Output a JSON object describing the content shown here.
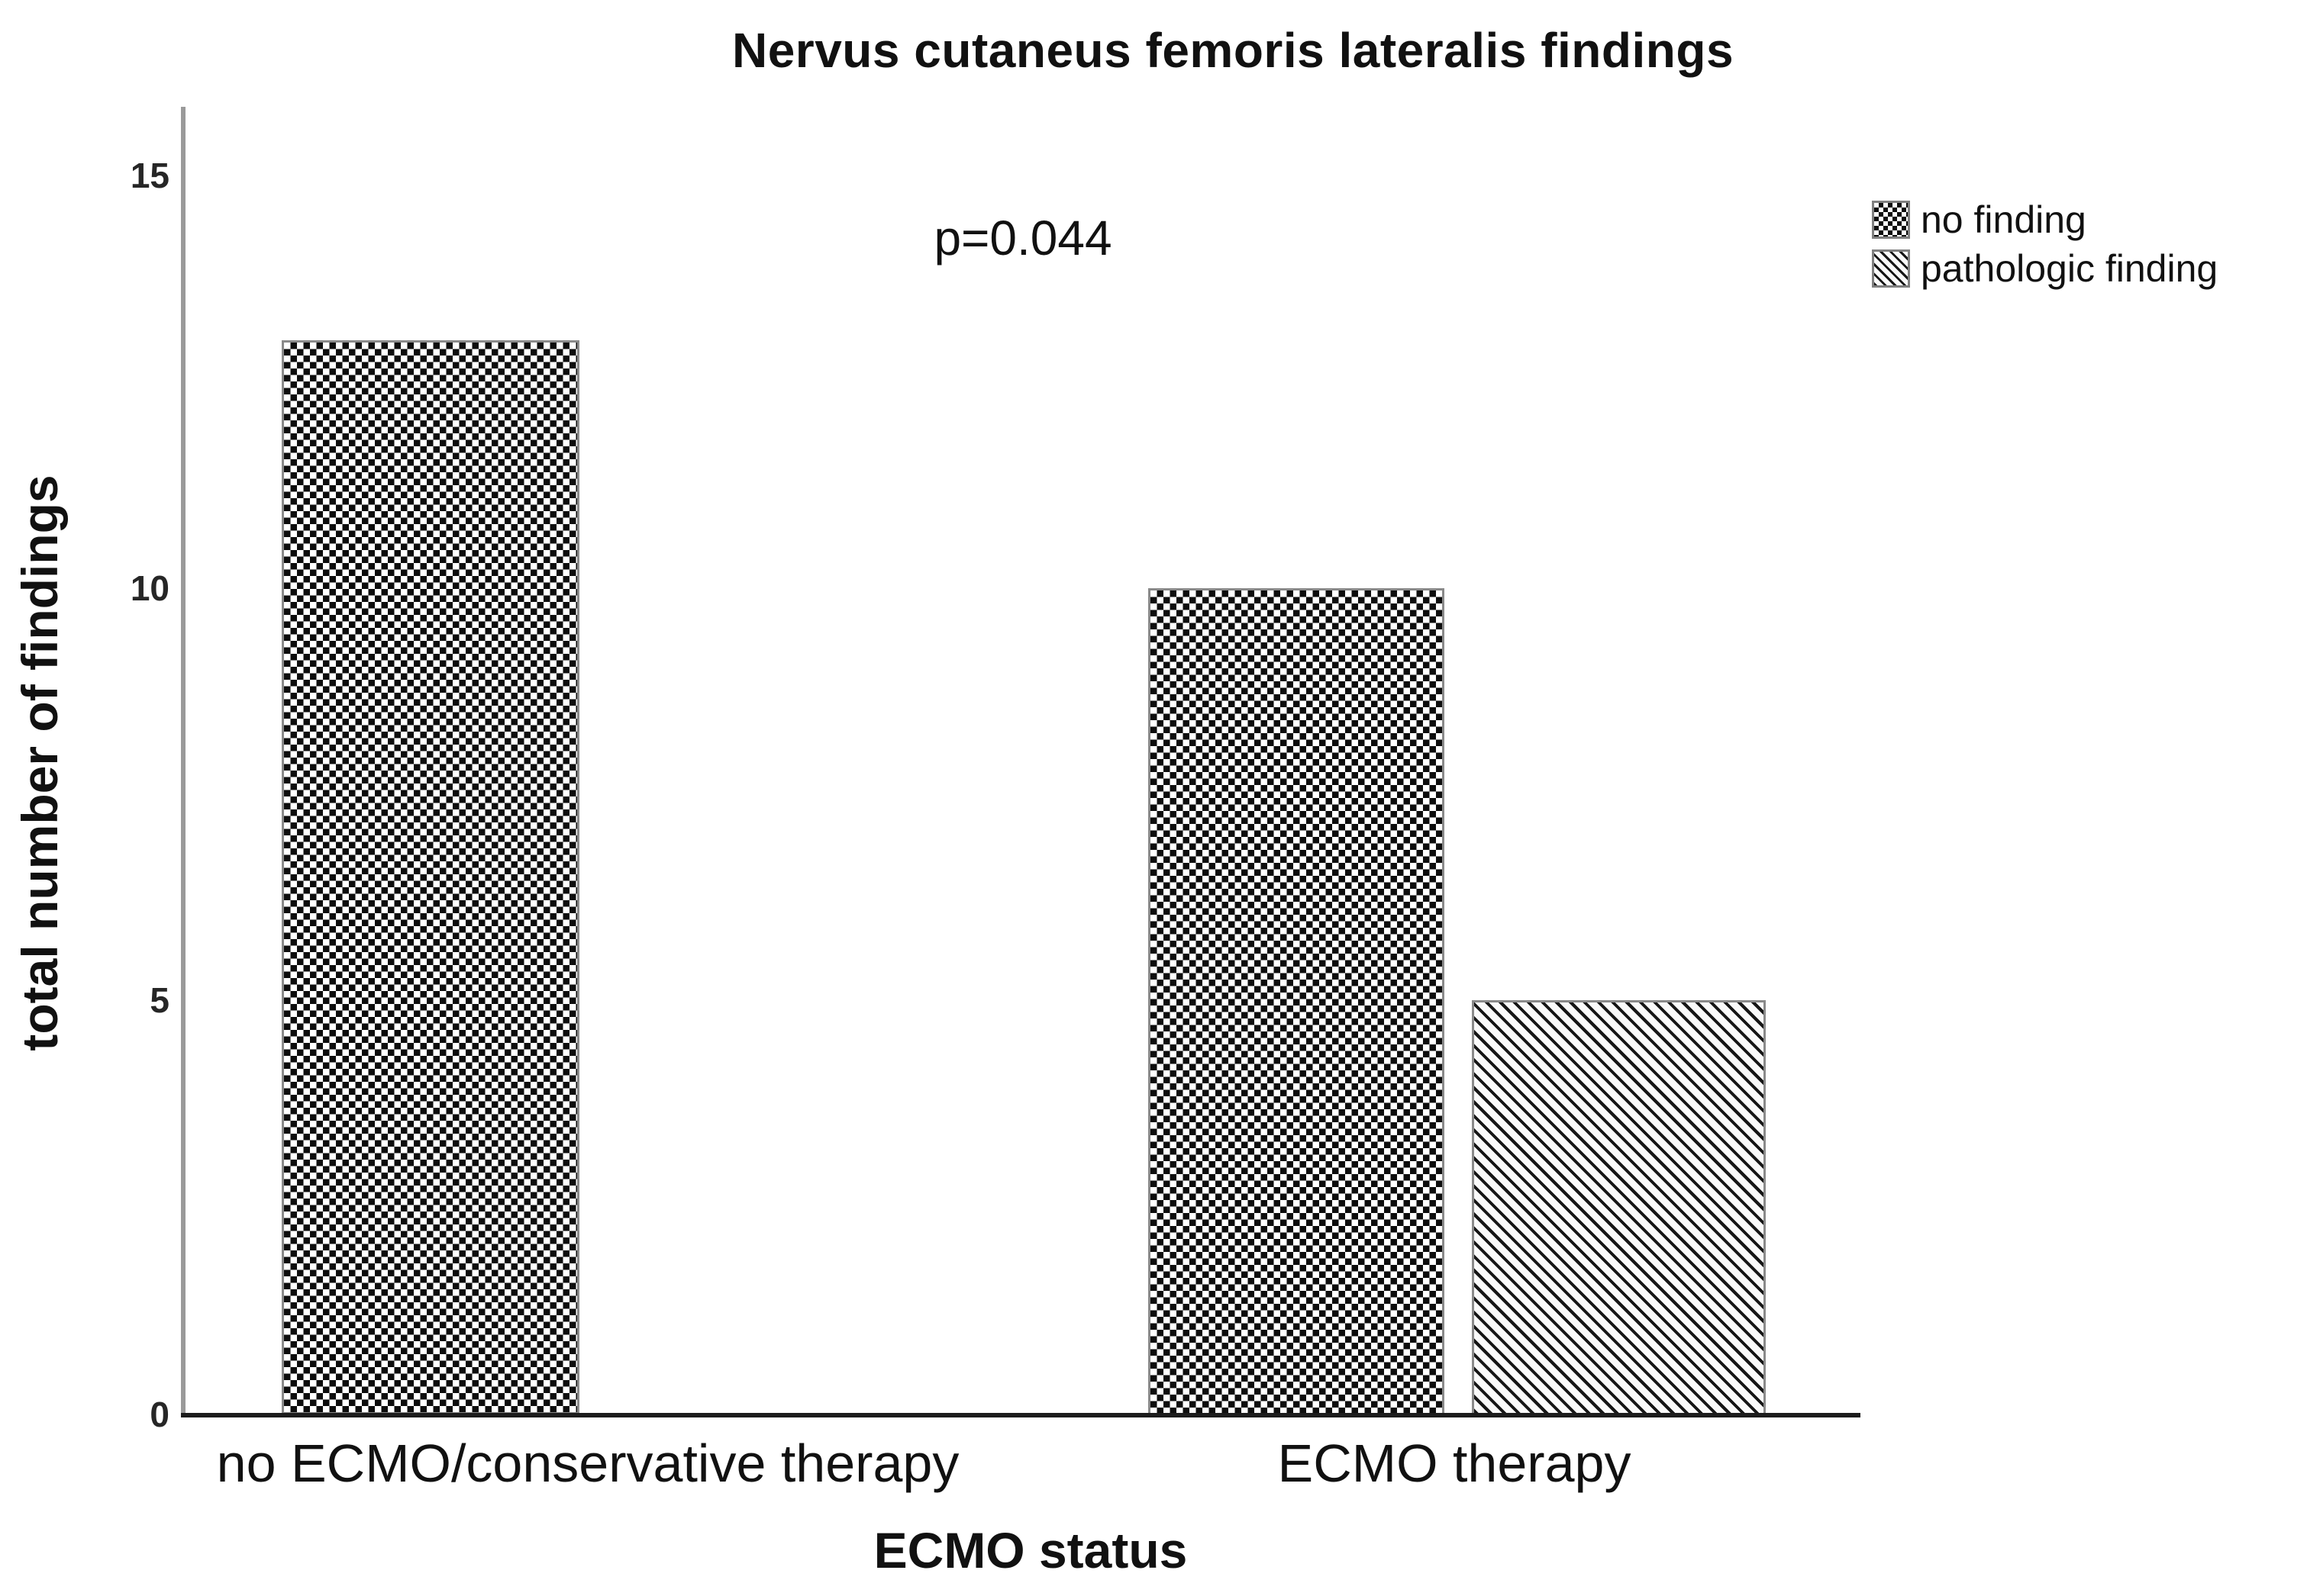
{
  "title": "Nervus cutaneus femoris lateralis findings",
  "annotation": "p=0.044",
  "y_axis": {
    "title": "total number of findings",
    "tick_labels": [
      "15",
      "10",
      "5",
      "0"
    ]
  },
  "x_axis": {
    "title": "ECMO status",
    "categories": [
      "no ECMO/conservative therapy",
      "ECMO therapy"
    ]
  },
  "legend": {
    "items": [
      {
        "label": "no finding",
        "pattern": "checker"
      },
      {
        "label": "pathologic finding",
        "pattern": "hatch"
      }
    ]
  },
  "colors": {
    "foreground": "#111111",
    "x_axis_line": "#1c1c1c",
    "y_axis_line": "#9a9a9a",
    "bar_outline": "#8a8a8a",
    "background": "#ffffff"
  },
  "chart_data": {
    "type": "bar",
    "categories": [
      "no ECMO/conservative therapy",
      "ECMO therapy"
    ],
    "series": [
      {
        "name": "no finding",
        "pattern": "checker",
        "values": [
          13,
          10
        ]
      },
      {
        "name": "pathologic finding",
        "pattern": "hatch",
        "values": [
          0,
          5
        ]
      }
    ],
    "title": "Nervus cutaneus femoris lateralis findings",
    "xlabel": "ECMO status",
    "ylabel": "total number of findings",
    "yticks": [
      0,
      5,
      10,
      15
    ],
    "ylim": [
      0,
      15.8
    ],
    "grid": false,
    "legend_position": "top-right",
    "annotation": "p=0.044",
    "bar_orientation": "vertical"
  }
}
